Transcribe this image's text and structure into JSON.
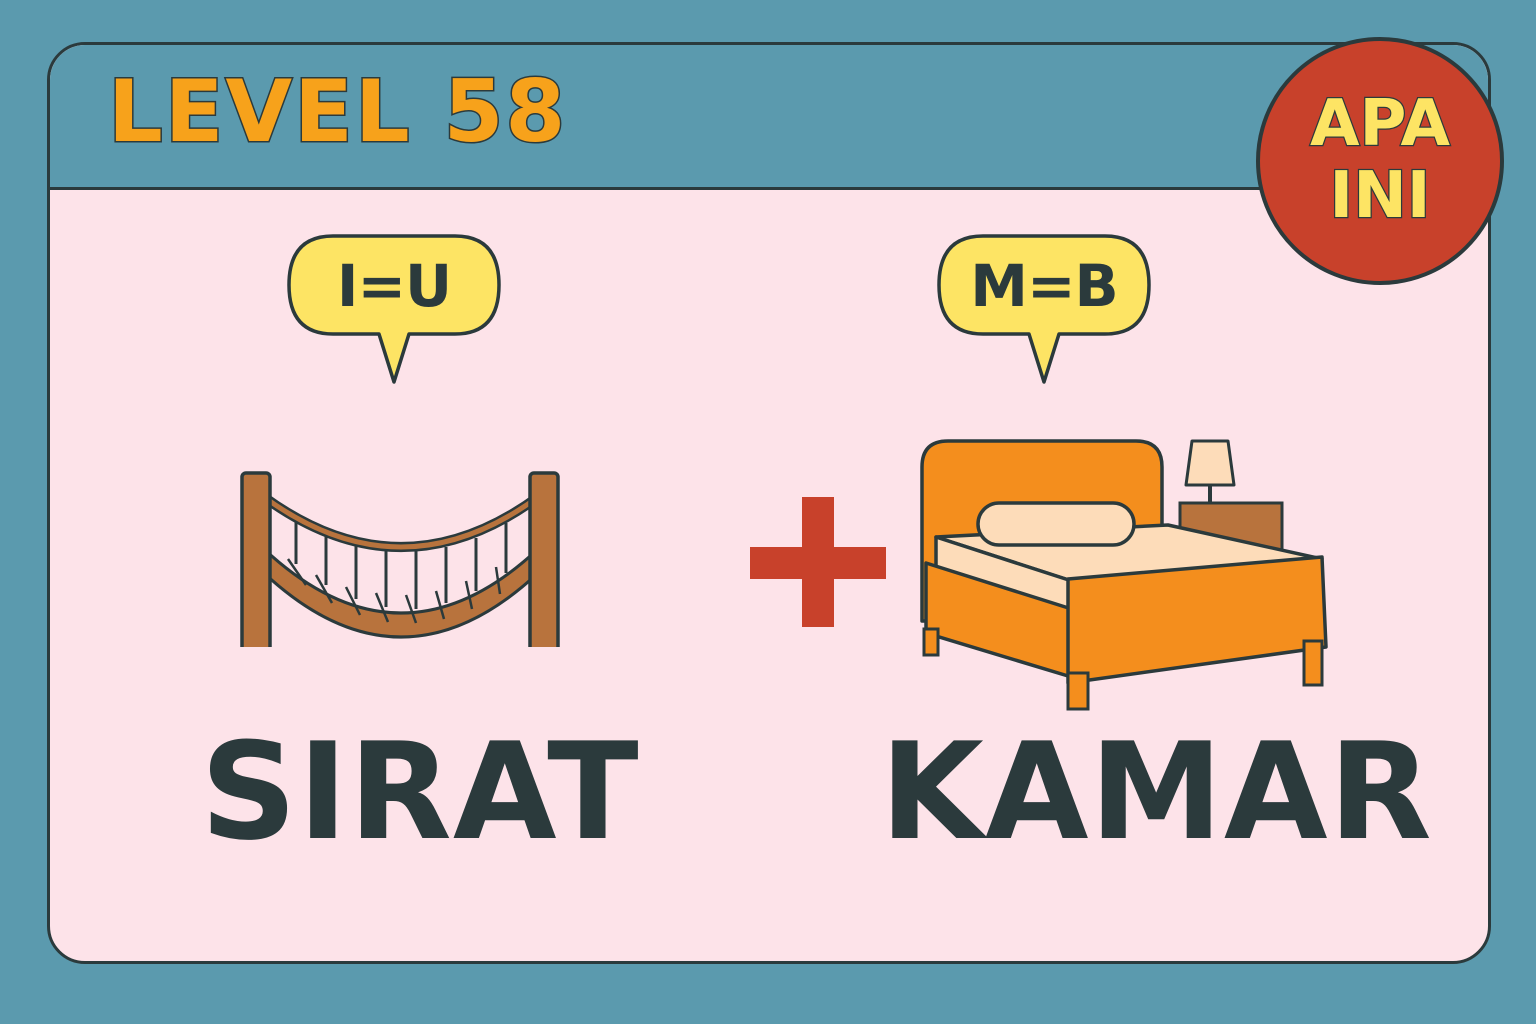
{
  "level": {
    "title": "LEVEL 58"
  },
  "badge": {
    "line1": "APA",
    "line2": "INI"
  },
  "puzzle": {
    "left": {
      "hint": "I=U",
      "word": "SIRAT",
      "picture_icon": "rope-bridge-icon"
    },
    "operator_icon": "plus-icon",
    "right": {
      "hint": "M=B",
      "word": "KAMAR",
      "picture_icon": "bed-icon"
    }
  },
  "colors": {
    "background": "#5b9aae",
    "card": "#fde3e9",
    "title": "#f7a21b",
    "badge": "#c8412b",
    "badge_text": "#fde464",
    "bubble": "#fde464",
    "plus": "#c8412b",
    "ink": "#2b3a3c",
    "wood": "#b8733d",
    "bed_frame": "#f48e1d",
    "mattress": "#fddcb9"
  }
}
